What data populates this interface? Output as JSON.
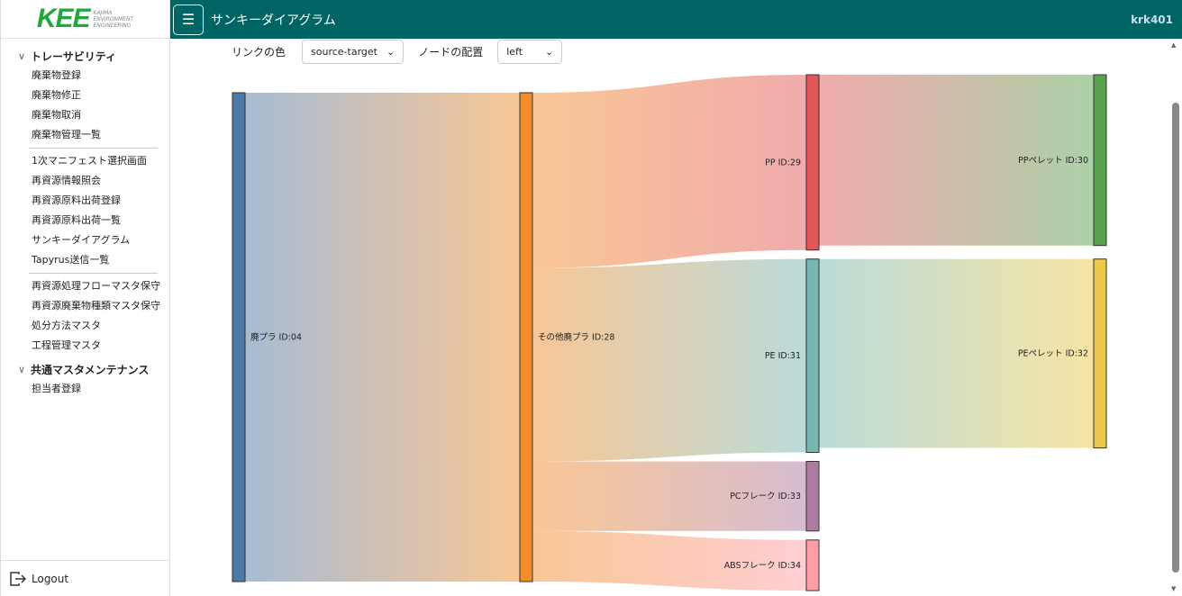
{
  "logo": {
    "text": "KEE",
    "sub": [
      "KAJIMA",
      "ENVIRONMENT",
      "ENGINEERING"
    ]
  },
  "header": {
    "title": "サンキーダイアグラム",
    "user": "krk401"
  },
  "sidebar": {
    "group1": "トレーサビリティ",
    "items1": [
      "廃棄物登録",
      "廃棄物修正",
      "廃棄物取消",
      "廃棄物管理一覧"
    ],
    "items2": [
      "1次マニフェスト選択画面",
      "再資源情報照会",
      "再資源原料出荷登録",
      "再資源原料出荷一覧",
      "サンキーダイアグラム",
      "Tapyrus送信一覧"
    ],
    "items3": [
      "再資源処理フローマスタ保守",
      "再資源廃棄物種類マスタ保守",
      "処分方法マスタ",
      "工程管理マスタ"
    ],
    "group2": "共通マスタメンテナンス",
    "items4": [
      "担当者登録"
    ],
    "logout": "Logout"
  },
  "controls": {
    "link_color_label": "リンクの色",
    "link_color_value": "source-target",
    "node_align_label": "ノードの配置",
    "node_align_value": "left"
  },
  "chart_data": {
    "type": "sankey",
    "nodes": [
      {
        "id": "n04",
        "label": "廃プラ ID:04",
        "color": "#4e79a7",
        "column": 0
      },
      {
        "id": "n28",
        "label": "その他廃プラ ID:28",
        "color": "#f28e2c",
        "column": 1
      },
      {
        "id": "n29",
        "label": "PP ID:29",
        "color": "#e15759",
        "column": 2
      },
      {
        "id": "n31",
        "label": "PE ID:31",
        "color": "#76b7b2",
        "column": 2
      },
      {
        "id": "n33",
        "label": "PCフレーク ID:33",
        "color": "#af7aa1",
        "column": 2
      },
      {
        "id": "n34",
        "label": "ABSフレーク ID:34",
        "color": "#ff9da7",
        "column": 2
      },
      {
        "id": "n30",
        "label": "PPペレット ID:30",
        "color": "#59a14f",
        "column": 3
      },
      {
        "id": "n32",
        "label": "PEペレット ID:32",
        "color": "#edc949",
        "column": 3
      }
    ],
    "links": [
      {
        "source": "n04",
        "target": "n28",
        "value": 541
      },
      {
        "source": "n28",
        "target": "n29",
        "value": 194
      },
      {
        "source": "n28",
        "target": "n31",
        "value": 214
      },
      {
        "source": "n28",
        "target": "n33",
        "value": 77
      },
      {
        "source": "n28",
        "target": "n34",
        "value": 56
      },
      {
        "source": "n29",
        "target": "n30",
        "value": 189
      },
      {
        "source": "n31",
        "target": "n32",
        "value": 209
      }
    ],
    "link_color": "source-target",
    "node_align": "left"
  }
}
